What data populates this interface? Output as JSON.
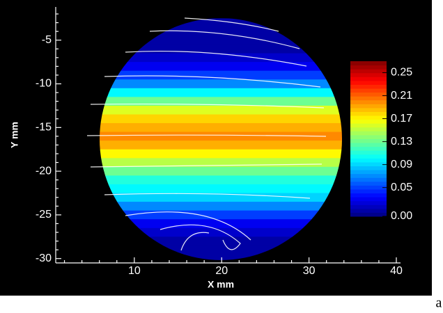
{
  "chart_data": {
    "type": "contour",
    "x_label": "X mm",
    "y_label": "Y mm",
    "xlim": [
      1,
      40
    ],
    "xticks": [
      10,
      20,
      30,
      40
    ],
    "ylim": [
      -30.5,
      -1.2
    ],
    "yticks": [
      -5,
      -10,
      -15,
      -20,
      -25,
      -30
    ],
    "clim": [
      0,
      0.27
    ],
    "colorbar_ticks": [
      {
        "value": 0,
        "label": "0.00"
      },
      0.05,
      0.09,
      0.13,
      0.17,
      0.21,
      0.25
    ],
    "field": {
      "y": [
        -3,
        -4,
        -5,
        -6,
        -7,
        -8,
        -9,
        -10,
        -11,
        -12,
        -13,
        -14,
        -15,
        -16,
        -17,
        -18,
        -19,
        -20,
        -21,
        -22,
        -23,
        -24,
        -25,
        -26,
        -27,
        -28,
        -29,
        -30
      ],
      "values": [
        0.01,
        0.01,
        0.01,
        0.01,
        0.02,
        0.03,
        0.05,
        0.07,
        0.1,
        0.13,
        0.16,
        0.18,
        0.19,
        0.2,
        0.19,
        0.17,
        0.15,
        0.13,
        0.11,
        0.1,
        0.09,
        0.07,
        0.05,
        0.03,
        0.02,
        0.01,
        0.01,
        0.01
      ]
    },
    "annotations": [
      "a"
    ]
  }
}
